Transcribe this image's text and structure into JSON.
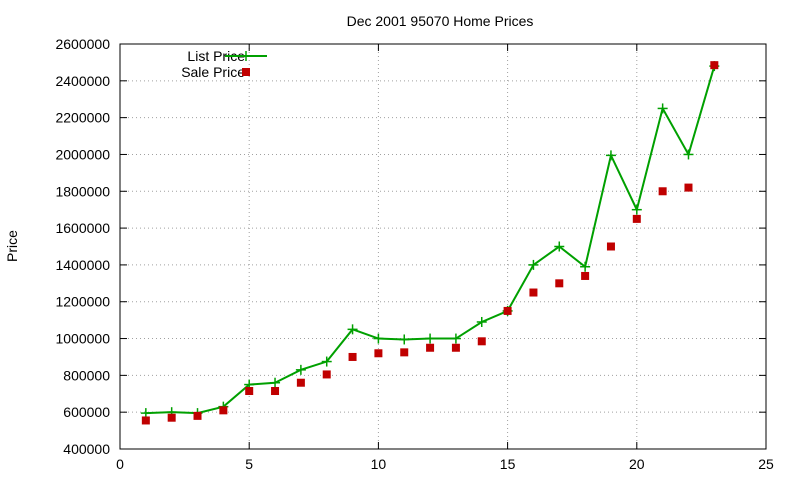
{
  "chart_data": {
    "type": "line",
    "title": "Dec 2001 95070 Home Prices",
    "xlabel": "",
    "ylabel": "Price",
    "xlim": [
      0,
      25
    ],
    "ylim": [
      400000,
      2600000
    ],
    "x_ticks": [
      0,
      5,
      10,
      15,
      20,
      25
    ],
    "y_ticks": [
      400000,
      600000,
      800000,
      1000000,
      1200000,
      1400000,
      1600000,
      1800000,
      2000000,
      2200000,
      2400000,
      2600000
    ],
    "grid": true,
    "legend_position": "top-left",
    "series": [
      {
        "name": "List Price",
        "style": "line-with-plus-markers",
        "color": "#00a000",
        "x": [
          1,
          2,
          3,
          4,
          5,
          6,
          7,
          8,
          9,
          10,
          11,
          12,
          13,
          14,
          15,
          16,
          17,
          18,
          19,
          20,
          21,
          22,
          23
        ],
        "y": [
          595000,
          600000,
          595000,
          630000,
          750000,
          760000,
          830000,
          875000,
          1050000,
          1000000,
          995000,
          1000000,
          1000000,
          1090000,
          1150000,
          1400000,
          1500000,
          1390000,
          1995000,
          1700000,
          2250000,
          2000000,
          2480000
        ]
      },
      {
        "name": "Sale Price",
        "style": "square-markers",
        "color": "#c00000",
        "x": [
          1,
          2,
          3,
          4,
          5,
          6,
          7,
          8,
          9,
          10,
          11,
          12,
          13,
          14,
          15,
          16,
          17,
          18,
          19,
          20,
          21,
          22,
          23
        ],
        "y": [
          555000,
          570000,
          580000,
          610000,
          715000,
          715000,
          760000,
          805000,
          900000,
          920000,
          925000,
          950000,
          950000,
          985000,
          1150000,
          1250000,
          1300000,
          1340000,
          1500000,
          1650000,
          1800000,
          1820000,
          2485000
        ]
      }
    ]
  }
}
